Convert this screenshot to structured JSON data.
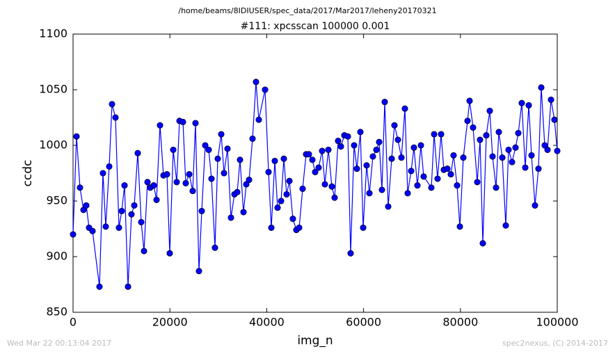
{
  "chart_data": {
    "type": "line",
    "suptitle": "/home/beams/8IDIUSER/spec_data/2017/Mar2017/leheny20170321",
    "title": "#111: xpcsscan 100000 0.001",
    "x_label": "img_n",
    "y_label": "ccdc",
    "footnote_left": "Wed Mar 22 00:13:04 2017",
    "footnote_right": "spec2nexus, (C) 2014-2017",
    "xlim": [
      0,
      100000
    ],
    "xticks": [
      0,
      20000,
      40000,
      60000,
      80000,
      100000
    ],
    "ylim": [
      850,
      1100
    ],
    "yticks": [
      850,
      900,
      950,
      1000,
      1050,
      1100
    ],
    "grid": false,
    "series": [
      {
        "color": "#0000ff",
        "marker": "circle",
        "x": [
          0,
          718,
          1437,
          2155,
          2730,
          3305,
          4023,
          5460,
          6178,
          6753,
          7471,
          8046,
          8764,
          9483,
          10057,
          10632,
          11351,
          12069,
          12644,
          13362,
          14080,
          14655,
          15374,
          15948,
          16667,
          17241,
          17960,
          18678,
          19397,
          19971,
          20690,
          21408,
          21983,
          22701,
          23276,
          23994,
          24713,
          25287,
          26006,
          26580,
          27299,
          28017,
          28592,
          29310,
          29885,
          30603,
          31178,
          31897,
          32615,
          33333,
          33908,
          34483,
          35201,
          35776,
          36351,
          37069,
          37787,
          38362,
          39655,
          40374,
          40948,
          41667,
          42241,
          42960,
          43534,
          44109,
          44684,
          45402,
          46121,
          46695,
          47414,
          48132,
          48707,
          49425,
          50000,
          50718,
          51437,
          52011,
          52730,
          53448,
          54023,
          54741,
          55316,
          56034,
          56753,
          57328,
          58046,
          58621,
          59339,
          59914,
          60632,
          61207,
          61925,
          62644,
          63218,
          63793,
          64368,
          65086,
          65805,
          66379,
          67098,
          67816,
          68534,
          69109,
          69828,
          70402,
          71121,
          71839,
          72414,
          73994,
          74569,
          75287,
          76006,
          76580,
          77299,
          78017,
          78592,
          79310,
          79885,
          80603,
          81466,
          81897,
          82615,
          83477,
          84052,
          84626,
          85345,
          86063,
          86638,
          87356,
          87931,
          88649,
          89368,
          89943,
          90661,
          91379,
          91954,
          92672,
          93391,
          94109,
          94684,
          95402,
          96121,
          96695,
          97414,
          97989,
          98707,
          99425,
          100000
        ],
        "values": [
          920,
          1008,
          962,
          942,
          946,
          926,
          923,
          873,
          975,
          927,
          981,
          1037,
          1025,
          926,
          941,
          964,
          873,
          938,
          946,
          993,
          931,
          905,
          967,
          962,
          964,
          951,
          1018,
          973,
          974,
          903,
          996,
          967,
          1022,
          1021,
          966,
          974,
          959,
          1020,
          887,
          941,
          1000,
          996,
          970,
          908,
          988,
          1010,
          975,
          997,
          935,
          956,
          958,
          987,
          940,
          965,
          969,
          1006,
          1057,
          1023,
          1050,
          976,
          926,
          986,
          944,
          950,
          988,
          956,
          968,
          934,
          924,
          926,
          961,
          992,
          992,
          987,
          976,
          980,
          995,
          965,
          996,
          963,
          953,
          1004,
          999,
          1009,
          1008,
          903,
          1000,
          979,
          1012,
          926,
          982,
          957,
          990,
          996,
          1003,
          960,
          1039,
          945,
          988,
          1018,
          1005,
          989,
          1033,
          957,
          977,
          998,
          964,
          1000,
          972,
          962,
          1010,
          970,
          1010,
          978,
          979,
          974,
          991,
          964,
          927,
          989,
          1022,
          1040,
          1016,
          967,
          1005,
          912,
          1009,
          1031,
          990,
          962,
          1012,
          989,
          928,
          996,
          985,
          998,
          1011,
          1038,
          980,
          1036,
          991,
          946,
          979,
          1052,
          1000,
          996,
          1041,
          1023,
          995
        ]
      }
    ]
  }
}
